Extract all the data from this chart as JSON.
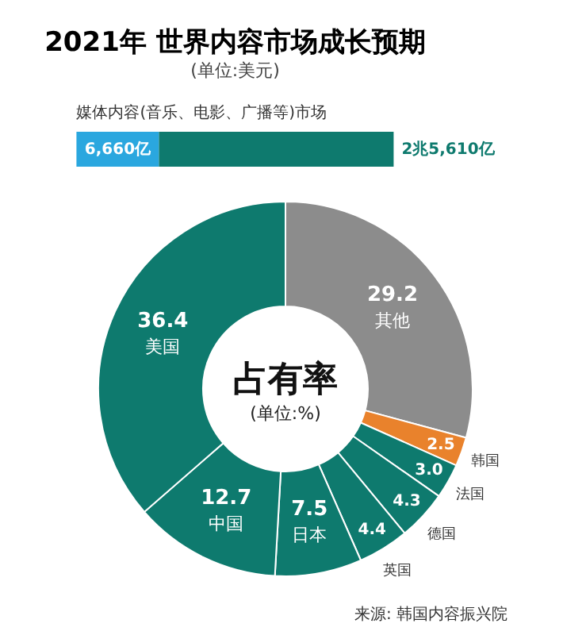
{
  "chart_data": [
    {
      "type": "bar",
      "title": "2021年 世界内容市场成长预期",
      "subtitle": "(单位:美元)",
      "orientation": "horizontal",
      "stacked": true,
      "categories": [
        null
      ],
      "series": [
        {
          "color": "#2aa7df",
          "values": [
            6660
          ],
          "value_labels": [
            "6,660亿"
          ]
        },
        {
          "color": "#0e7a6e",
          "values": [
            18950
          ],
          "value_labels": [
            null
          ]
        }
      ],
      "totals": [
        "2兆5,610亿"
      ],
      "annotations": [
        "媒体内容(音乐、电影、广播等)市场"
      ]
    },
    {
      "type": "donut",
      "title": "占有率",
      "subtitle": "(单位:%)",
      "categories": [
        "其他",
        "韩国",
        "法国",
        "德国",
        "英国",
        "日本",
        "中国",
        "美国"
      ],
      "values": [
        29.2,
        2.5,
        3.0,
        4.3,
        4.4,
        7.5,
        12.7,
        36.4
      ],
      "colors": [
        "#8c8c8c",
        "#e9822c",
        "#0e7a6e",
        "#0e7a6e",
        "#0e7a6e",
        "#0e7a6e",
        "#0e7a6e",
        "#0e7a6e"
      ],
      "value_labels": [
        "29.2",
        "2.5",
        "3.0",
        "4.3",
        "4.4",
        "7.5",
        "12.7",
        "36.4"
      ],
      "annotations": [
        "来源: 韩国内容振兴院"
      ]
    }
  ]
}
